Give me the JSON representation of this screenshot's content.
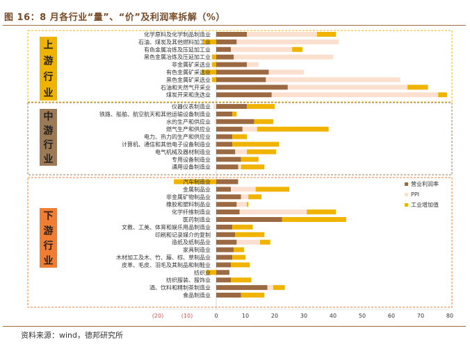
{
  "title": "图 16：8 月各行业“量”、“价”及利润率拆解（%）",
  "source": "资料来源：wind，德邦研究所",
  "colors": {
    "profit": "#9b6a42",
    "ppi": "#fbe0d0",
    "value_added": "#f0b400",
    "upstream_box": "#f0b400",
    "midstream_box": "#9b7a55",
    "downstream_box": "#f07d32"
  },
  "chart_data": {
    "type": "bar",
    "orientation": "horizontal",
    "stacked": true,
    "xlim": [
      -20,
      80
    ],
    "x_ticks": [
      "(20)",
      "(10)",
      "0",
      "10",
      "20",
      "30",
      "40",
      "50",
      "60",
      "70",
      "80"
    ],
    "legend": {
      "placement": "right",
      "entries": [
        "营业利润率",
        "PPI",
        "工业增加值"
      ]
    },
    "groups": [
      {
        "label": "上游行业",
        "categories": [
          "化学原料及化学制品制造业",
          "石油、煤炭及其他燃料加工业",
          "有色金属冶炼及压延加工业",
          "黑色金属冶炼及压延加工业",
          "非金属矿采选业",
          "有色金属矿采选业",
          "黑色金属矿采选业",
          "石油和天然气开采业",
          "煤炭开采和洗选业"
        ],
        "profit": [
          10.5,
          7,
          5,
          6,
          10.5,
          18,
          17,
          24.5,
          19
        ],
        "ppi": [
          24,
          35,
          21,
          34,
          4,
          12,
          46,
          41,
          57
        ],
        "value_added": [
          6.5,
          -4.5,
          3.5,
          -1.5,
          -1.5,
          -5,
          -1.5,
          7,
          3
        ]
      },
      {
        "label": "中游行业",
        "categories": [
          "仪器仪表制造业",
          "铁路、船舶、航空航天和其他运输设备制造业",
          "水的生产和供应业",
          "燃气生产和供应业",
          "电力、热力的生产和供应业",
          "计算机、通信和其他电子设备制造业",
          "电气机械及器材制造业",
          "专用设备制造业",
          "通用设备制造业"
        ],
        "profit": [
          10.5,
          5.5,
          13,
          9,
          5.5,
          5.5,
          6.5,
          8.5,
          7.5
        ],
        "ppi": [
          -1,
          0,
          -0.5,
          5,
          0,
          -0.5,
          4,
          0,
          1
        ],
        "value_added": [
          9.5,
          1.5,
          6.5,
          24.5,
          5,
          16,
          10,
          6,
          8
        ]
      },
      {
        "label": "下游行业",
        "categories": [
          "汽车制造业",
          "金属制品业",
          "非金属矿物制品业",
          "橡胶和塑料制品业",
          "化学纤维制造业",
          "医药制造业",
          "文教、工美、体育和娱乐用品制造业",
          "印刷和记录媒介的复制",
          "造纸及纸制品业",
          "家具制造业",
          "木材加工及木、竹、藤、棕、草制品业",
          "皮革、毛皮、羽毛及其制品和制鞋业",
          "纺织业",
          "纺织服装、服饰业",
          "酒、饮料和精制茶制造业",
          "食品制造业"
        ],
        "profit": [
          7.5,
          5,
          8.5,
          7,
          8,
          22.5,
          5.5,
          6.5,
          7,
          6,
          5.5,
          5,
          4.5,
          5,
          17.5,
          8.5
        ],
        "ppi": [
          0,
          8.5,
          2.5,
          3.5,
          23,
          0,
          0,
          0,
          8,
          0,
          0,
          0,
          0,
          0,
          2,
          0
        ],
        "value_added": [
          -14.5,
          11.5,
          4.5,
          0.5,
          10,
          22,
          7,
          10,
          3.5,
          3.5,
          4.5,
          6.5,
          -3.5,
          7,
          4,
          8
        ]
      }
    ]
  }
}
